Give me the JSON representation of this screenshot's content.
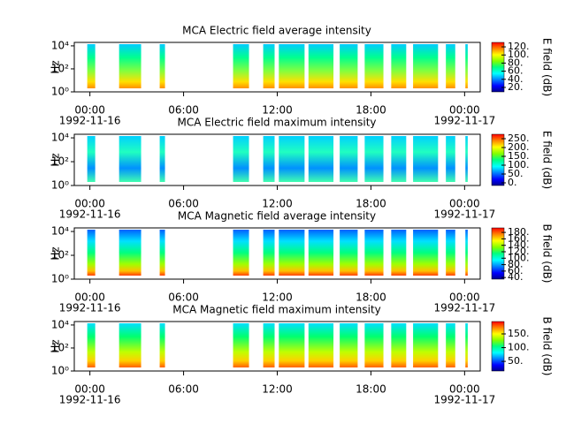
{
  "chart_data": [
    {
      "type": "spectrogram",
      "title": "MCA  Electric field average intensity",
      "ylabel": "Hz",
      "yscale": "log",
      "ylim": [
        1,
        20000
      ],
      "yticks": [
        {
          "value": 1,
          "label": "10⁰"
        },
        {
          "value": 100,
          "label": "10²"
        },
        {
          "value": 10000,
          "label": "10⁴"
        }
      ],
      "xlim": [
        -1,
        25
      ],
      "xticks": [
        {
          "value": 0,
          "label": "00:00"
        },
        {
          "value": 6,
          "label": "06:00"
        },
        {
          "value": 12,
          "label": "12:00"
        },
        {
          "value": 18,
          "label": "18:00"
        },
        {
          "value": 24,
          "label": "00:00"
        }
      ],
      "x_dates": [
        {
          "value": 0,
          "label": "1992-11-16"
        },
        {
          "value": 24,
          "label": "1992-11-17"
        }
      ],
      "colorbar": {
        "label": "E field (dB)",
        "lim": [
          9,
          131
        ],
        "ticks": [
          {
            "value": 20,
            "label": "20."
          },
          {
            "value": 40,
            "label": "40."
          },
          {
            "value": 60,
            "label": "60."
          },
          {
            "value": 80,
            "label": "80."
          },
          {
            "value": 100,
            "label": "100."
          },
          {
            "value": 120,
            "label": "120."
          }
        ]
      },
      "segments": [
        [
          -0.17,
          0.34
        ],
        [
          1.87,
          3.28
        ],
        [
          4.47,
          4.81
        ],
        [
          9.17,
          10.19
        ],
        [
          11.1,
          11.83
        ],
        [
          12.1,
          13.75
        ],
        [
          14.0,
          15.6
        ],
        [
          16.0,
          17.15
        ],
        [
          17.6,
          18.8
        ],
        [
          19.3,
          20.26
        ],
        [
          20.7,
          22.3
        ],
        [
          22.8,
          23.4
        ],
        [
          24.05,
          24.2
        ]
      ]
    },
    {
      "type": "spectrogram",
      "title": "MCA  Electric field maximum intensity",
      "ylabel": "Hz",
      "yscale": "log",
      "ylim": [
        1,
        20000
      ],
      "yticks": [
        {
          "value": 1,
          "label": "10⁰"
        },
        {
          "value": 100,
          "label": "10²"
        },
        {
          "value": 10000,
          "label": "10⁴"
        }
      ],
      "xlim": [
        -1,
        25
      ],
      "xticks": [
        {
          "value": 0,
          "label": "00:00"
        },
        {
          "value": 6,
          "label": "06:00"
        },
        {
          "value": 12,
          "label": "12:00"
        },
        {
          "value": 18,
          "label": "18:00"
        },
        {
          "value": 24,
          "label": "00:00"
        }
      ],
      "x_dates": [
        {
          "value": 0,
          "label": "1992-11-16"
        },
        {
          "value": 24,
          "label": "1992-11-17"
        }
      ],
      "colorbar": {
        "label": "E field (dB)",
        "lim": [
          -15,
          275
        ],
        "ticks": [
          {
            "value": 0,
            "label": "0."
          },
          {
            "value": 50,
            "label": "50."
          },
          {
            "value": 100,
            "label": "100."
          },
          {
            "value": 150,
            "label": "150."
          },
          {
            "value": 200,
            "label": "200."
          },
          {
            "value": 250,
            "label": "250."
          }
        ]
      },
      "segments": [
        [
          -0.17,
          0.34
        ],
        [
          1.87,
          3.28
        ],
        [
          4.47,
          4.81
        ],
        [
          9.17,
          10.19
        ],
        [
          11.1,
          11.83
        ],
        [
          12.1,
          13.75
        ],
        [
          14.0,
          15.6
        ],
        [
          16.0,
          17.15
        ],
        [
          17.6,
          18.8
        ],
        [
          19.3,
          20.26
        ],
        [
          20.7,
          22.3
        ],
        [
          22.8,
          23.4
        ],
        [
          24.05,
          24.2
        ]
      ]
    },
    {
      "type": "spectrogram",
      "title": "MCA  Magnetic field average intensity",
      "ylabel": "Hz",
      "yscale": "log",
      "ylim": [
        1,
        20000
      ],
      "yticks": [
        {
          "value": 1,
          "label": "10⁰"
        },
        {
          "value": 100,
          "label": "10²"
        },
        {
          "value": 10000,
          "label": "10⁴"
        }
      ],
      "xlim": [
        -1,
        25
      ],
      "xticks": [
        {
          "value": 0,
          "label": "00:00"
        },
        {
          "value": 6,
          "label": "06:00"
        },
        {
          "value": 12,
          "label": "12:00"
        },
        {
          "value": 18,
          "label": "18:00"
        },
        {
          "value": 24,
          "label": "00:00"
        }
      ],
      "x_dates": [
        {
          "value": 0,
          "label": "1992-11-16"
        },
        {
          "value": 24,
          "label": "1992-11-17"
        }
      ],
      "colorbar": {
        "label": "B field (dB)",
        "lim": [
          35,
          194
        ],
        "ticks": [
          {
            "value": 40,
            "label": "40."
          },
          {
            "value": 60,
            "label": "60."
          },
          {
            "value": 80,
            "label": "80."
          },
          {
            "value": 100,
            "label": "100."
          },
          {
            "value": 120,
            "label": "120."
          },
          {
            "value": 140,
            "label": "140."
          },
          {
            "value": 160,
            "label": "160."
          },
          {
            "value": 180,
            "label": "180."
          }
        ]
      },
      "segments": [
        [
          -0.17,
          0.34
        ],
        [
          1.87,
          3.28
        ],
        [
          4.47,
          4.81
        ],
        [
          9.17,
          10.19
        ],
        [
          11.1,
          11.83
        ],
        [
          12.1,
          13.75
        ],
        [
          14.0,
          15.6
        ],
        [
          16.0,
          17.15
        ],
        [
          17.6,
          18.8
        ],
        [
          19.3,
          20.26
        ],
        [
          20.7,
          22.3
        ],
        [
          22.8,
          23.4
        ],
        [
          24.05,
          24.2
        ]
      ]
    },
    {
      "type": "spectrogram",
      "title": "MCA  Magnetic field maximum intensity",
      "ylabel": "Hz",
      "yscale": "log",
      "ylim": [
        1,
        20000
      ],
      "yticks": [
        {
          "value": 1,
          "label": "10⁰"
        },
        {
          "value": 100,
          "label": "10²"
        },
        {
          "value": 10000,
          "label": "10⁴"
        }
      ],
      "xlim": [
        -1,
        25
      ],
      "xticks": [
        {
          "value": 0,
          "label": "00:00"
        },
        {
          "value": 6,
          "label": "06:00"
        },
        {
          "value": 12,
          "label": "12:00"
        },
        {
          "value": 18,
          "label": "18:00"
        },
        {
          "value": 24,
          "label": "00:00"
        }
      ],
      "x_dates": [
        {
          "value": 0,
          "label": "1992-11-16"
        },
        {
          "value": 24,
          "label": "1992-11-17"
        }
      ],
      "colorbar": {
        "label": "B field (dB)",
        "lim": [
          15,
          195
        ],
        "ticks": [
          {
            "value": 50,
            "label": "50."
          },
          {
            "value": 100,
            "label": "100."
          },
          {
            "value": 150,
            "label": "150."
          }
        ]
      },
      "segments": [
        [
          -0.17,
          0.34
        ],
        [
          1.87,
          3.28
        ],
        [
          4.47,
          4.81
        ],
        [
          9.17,
          10.19
        ],
        [
          11.1,
          11.83
        ],
        [
          12.1,
          13.75
        ],
        [
          14.0,
          15.6
        ],
        [
          16.0,
          17.15
        ],
        [
          17.6,
          18.8
        ],
        [
          19.3,
          20.26
        ],
        [
          20.7,
          22.3
        ],
        [
          22.8,
          23.4
        ],
        [
          24.05,
          24.2
        ]
      ]
    }
  ]
}
